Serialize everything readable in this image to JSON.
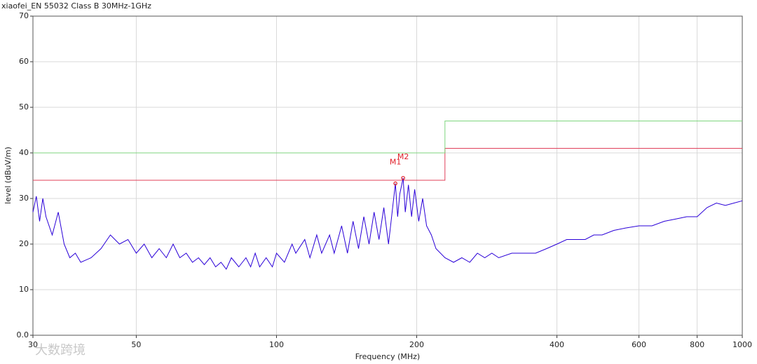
{
  "chart_data": {
    "type": "line",
    "title": "xiaofei_EN 55032 Class B 30MHz-1GHz",
    "x_label": "Frequency (MHz)",
    "y_label": "level (dBuV/m)",
    "watermark": "大数跨境",
    "log_x": true,
    "grid": true,
    "xlim": [
      30,
      1000
    ],
    "ylim": [
      0,
      70
    ],
    "xticks": [
      30,
      50,
      100,
      200,
      400,
      600,
      800,
      1000
    ],
    "yticks": [
      {
        "value": 0,
        "label": "0.0"
      },
      10,
      20,
      30,
      40,
      50,
      60,
      70
    ],
    "series": [
      {
        "color": "#e0405a",
        "x": [
          30,
          230,
          230,
          1000
        ],
        "values": [
          34,
          34,
          41,
          41
        ]
      },
      {
        "color": "#7ed67e",
        "x": [
          30,
          230,
          230,
          1000
        ],
        "values": [
          40,
          40,
          47,
          47
        ]
      },
      {
        "color": "#2a00d8",
        "x": [
          30,
          30.5,
          31,
          31.5,
          32,
          33,
          34,
          35,
          36,
          37,
          38,
          40,
          42,
          44,
          46,
          48,
          50,
          52,
          54,
          56,
          58,
          60,
          62,
          64,
          66,
          68,
          70,
          72,
          74,
          76,
          78,
          80,
          83,
          86,
          88,
          90,
          92,
          95,
          98,
          100,
          104,
          108,
          110,
          115,
          118,
          122,
          125,
          130,
          133,
          138,
          142,
          146,
          150,
          154,
          158,
          162,
          166,
          170,
          174,
          178,
          180,
          182,
          184,
          187,
          189,
          192,
          195,
          198,
          202,
          206,
          210,
          215,
          220,
          230,
          240,
          250,
          260,
          270,
          280,
          290,
          300,
          320,
          340,
          360,
          380,
          400,
          420,
          440,
          460,
          480,
          500,
          530,
          560,
          600,
          640,
          680,
          720,
          760,
          800,
          840,
          880,
          920,
          960,
          1000
        ],
        "values": [
          27,
          30.5,
          25,
          30,
          26,
          22,
          27,
          20,
          17,
          18,
          16,
          17,
          19,
          22,
          20,
          21,
          18,
          20,
          17,
          19,
          17,
          20,
          17,
          18,
          16,
          17,
          15.5,
          17,
          15,
          16,
          14.5,
          17,
          15,
          17,
          15,
          18,
          15,
          17,
          15,
          18,
          16,
          20,
          18,
          21,
          17,
          22,
          18,
          22,
          18,
          24,
          18,
          25,
          19,
          26,
          20,
          27,
          21,
          28,
          20,
          29,
          33.3,
          26,
          31,
          34.5,
          27,
          33,
          26,
          32,
          25,
          30,
          24,
          22,
          19,
          17,
          16,
          17,
          16,
          18,
          17,
          18,
          17,
          18,
          18,
          18,
          19,
          20,
          21,
          21,
          21,
          22,
          22,
          23,
          23.5,
          24,
          24,
          25,
          25.5,
          26,
          26,
          28,
          29,
          28.5,
          29,
          29.5
        ]
      }
    ],
    "markers": [
      {
        "label": "M1",
        "color": "#e0202a",
        "x": 180,
        "value": 33.3
      },
      {
        "label": "M2",
        "color": "#e0202a",
        "x": 187,
        "value": 34.5
      }
    ]
  }
}
